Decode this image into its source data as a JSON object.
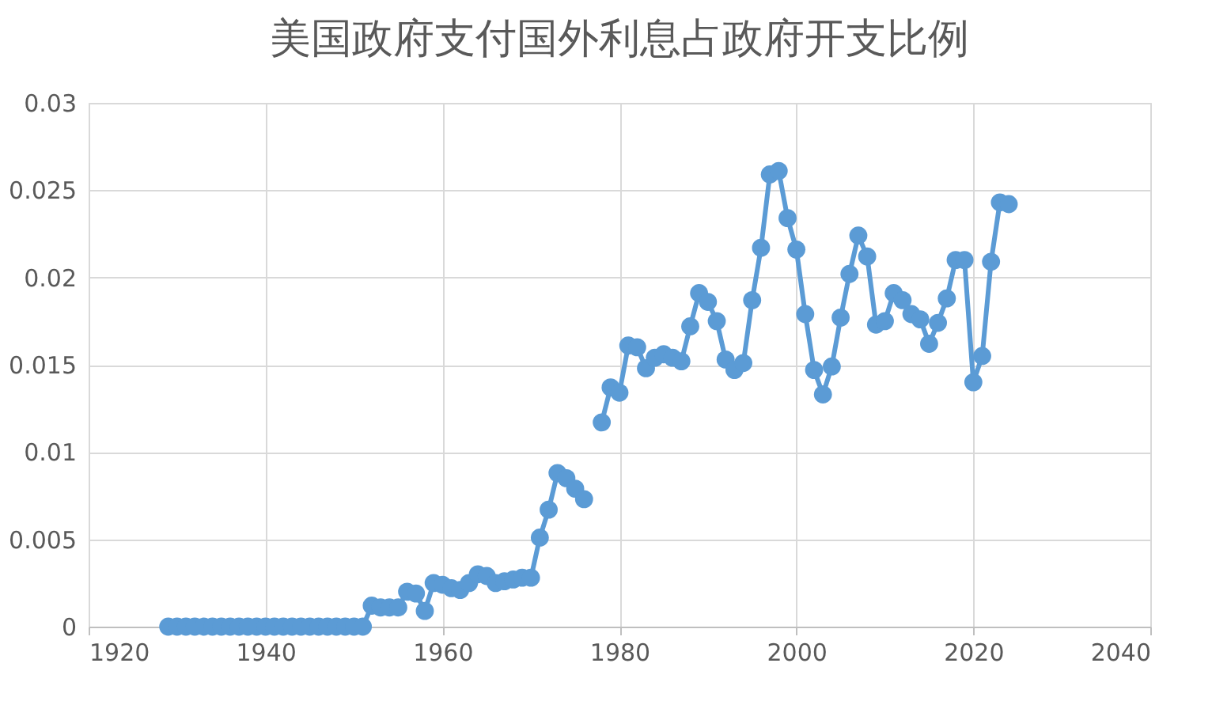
{
  "chart_data": {
    "type": "line",
    "title": "美国政府支付国外利息占政府开支比例",
    "x": [
      1929,
      1930,
      1931,
      1932,
      1933,
      1934,
      1935,
      1936,
      1937,
      1938,
      1939,
      1940,
      1941,
      1942,
      1943,
      1944,
      1945,
      1946,
      1947,
      1948,
      1949,
      1950,
      1951,
      1952,
      1953,
      1954,
      1955,
      1956,
      1957,
      1958,
      1959,
      1960,
      1961,
      1962,
      1963,
      1964,
      1965,
      1966,
      1967,
      1968,
      1969,
      1970,
      1971,
      1972,
      1973,
      1974,
      1975,
      1976,
      1977,
      1978,
      1979,
      1980,
      1981,
      1982,
      1983,
      1984,
      1985,
      1986,
      1987,
      1988,
      1989,
      1990,
      1991,
      1992,
      1993,
      1994,
      1995,
      1996,
      1997,
      1998,
      1999,
      2000,
      2001,
      2002,
      2003,
      2004,
      2005,
      2006,
      2007,
      2008,
      2009,
      2010,
      2011,
      2012,
      2013,
      2014,
      2015,
      2016,
      2017,
      2018,
      2019,
      2020,
      2021,
      2022,
      2023,
      2024
    ],
    "series": [
      {
        "color": "#5b9bd5",
        "values": [
          0,
          0,
          0,
          0,
          0,
          0,
          0,
          0,
          0,
          0,
          0,
          0,
          0,
          0,
          0,
          0,
          0,
          0,
          0,
          0,
          0,
          0,
          0,
          0.0012,
          0.0011,
          0.0011,
          0.0011,
          0.002,
          0.0019,
          0.0009,
          0.0025,
          0.0024,
          0.0022,
          0.0021,
          0.0025,
          0.003,
          0.0029,
          0.0025,
          0.0026,
          0.0027,
          0.0028,
          0.0028,
          0.0051,
          0.0067,
          0.0088,
          0.0085,
          0.0079,
          0.0073,
          null,
          0.0117,
          0.0137,
          0.0134,
          0.0161,
          0.016,
          0.0148,
          0.0154,
          0.0156,
          0.0154,
          0.0152,
          0.0172,
          0.0191,
          0.0186,
          0.0175,
          0.0153,
          0.0147,
          0.0151,
          0.0187,
          0.0217,
          0.0259,
          0.0261,
          0.0234,
          0.0216,
          0.0179,
          0.0147,
          0.0133,
          0.0149,
          0.0177,
          0.0202,
          0.0224,
          0.0212,
          0.0173,
          0.0175,
          0.0191,
          0.0187,
          0.0179,
          0.0176,
          0.0162,
          0.0174,
          0.0188,
          0.021,
          0.021,
          0.014,
          0.0155,
          0.0209,
          0.0243,
          0.0242
        ]
      }
    ],
    "xlim": [
      1920,
      2040
    ],
    "xticks": [
      1920,
      1940,
      1960,
      1980,
      2000,
      2020,
      2040
    ],
    "ylim": [
      0,
      0.03
    ],
    "yticks": [
      0,
      0.005,
      0.01,
      0.015,
      0.02,
      0.025,
      0.03
    ],
    "grid": true,
    "marker": "circle",
    "line_style": "solid"
  }
}
